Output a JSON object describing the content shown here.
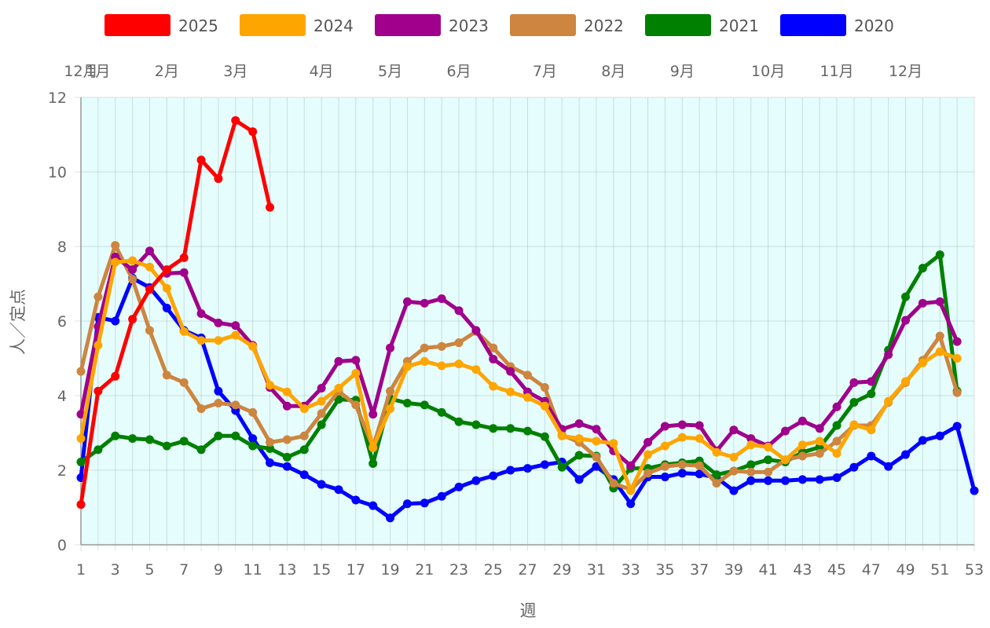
{
  "chart_data": {
    "type": "line",
    "xlabel": "週",
    "ylabel": "人／定点",
    "ylim": [
      0,
      12
    ],
    "xlim": [
      1,
      53
    ],
    "y_ticks": [
      0,
      2,
      4,
      6,
      8,
      10,
      12
    ],
    "x_ticks": [
      1,
      3,
      5,
      7,
      9,
      11,
      13,
      15,
      17,
      19,
      21,
      23,
      25,
      27,
      29,
      31,
      33,
      35,
      37,
      39,
      41,
      43,
      45,
      47,
      49,
      51,
      53
    ],
    "month_labels": [
      {
        "label": "12月",
        "week": 1
      },
      {
        "label": "1月",
        "week": 2
      },
      {
        "label": "2月",
        "week": 6
      },
      {
        "label": "3月",
        "week": 10
      },
      {
        "label": "4月",
        "week": 15
      },
      {
        "label": "5月",
        "week": 19
      },
      {
        "label": "6月",
        "week": 23
      },
      {
        "label": "7月",
        "week": 28
      },
      {
        "label": "8月",
        "week": 32
      },
      {
        "label": "9月",
        "week": 36
      },
      {
        "label": "10月",
        "week": 41
      },
      {
        "label": "11月",
        "week": 45
      },
      {
        "label": "12月",
        "week": 49
      }
    ],
    "grid": true,
    "legend_position": "top",
    "plot_background": "#e5fdfd",
    "series": [
      {
        "name": "2020",
        "color": "#0000ff",
        "values": [
          1.8,
          6.1,
          6.0,
          7.15,
          6.9,
          6.35,
          5.75,
          5.55,
          4.12,
          3.6,
          2.85,
          2.2,
          2.1,
          1.88,
          1.62,
          1.48,
          1.2,
          1.05,
          0.72,
          1.1,
          1.12,
          1.3,
          1.55,
          1.72,
          1.85,
          2.0,
          2.05,
          2.15,
          2.22,
          1.75,
          2.1,
          1.75,
          1.1,
          1.82,
          1.82,
          1.92,
          1.9,
          1.8,
          1.45,
          1.72,
          1.72,
          1.72,
          1.75,
          1.75,
          1.8,
          2.08,
          2.38,
          2.1,
          2.42,
          2.8,
          2.92,
          3.18,
          1.45
        ]
      },
      {
        "name": "2021",
        "color": "#008000",
        "values": [
          2.22,
          2.55,
          2.92,
          2.85,
          2.82,
          2.65,
          2.78,
          2.55,
          2.92,
          2.92,
          2.65,
          2.58,
          2.35,
          2.55,
          3.22,
          3.9,
          3.88,
          2.18,
          3.92,
          3.8,
          3.75,
          3.55,
          3.3,
          3.22,
          3.12,
          3.12,
          3.05,
          2.9,
          2.08,
          2.4,
          2.38,
          1.52,
          2.05,
          2.05,
          2.15,
          2.2,
          2.25,
          1.88,
          1.98,
          2.15,
          2.28,
          2.22,
          2.48,
          2.62,
          3.2,
          3.82,
          4.05,
          5.22,
          6.65,
          7.42,
          7.78,
          4.12
        ]
      },
      {
        "name": "2022",
        "color": "#cd853f",
        "values": [
          4.65,
          6.65,
          8.03,
          7.12,
          5.75,
          4.55,
          4.35,
          3.65,
          3.8,
          3.75,
          3.55,
          2.75,
          2.82,
          2.92,
          3.52,
          4.12,
          3.75,
          2.62,
          4.12,
          4.92,
          5.28,
          5.32,
          5.42,
          5.72,
          5.28,
          4.78,
          4.55,
          4.22,
          2.95,
          2.75,
          2.35,
          1.65,
          1.48,
          1.92,
          2.1,
          2.15,
          2.12,
          1.65,
          1.98,
          1.95,
          1.95,
          2.28,
          2.38,
          2.45,
          2.78,
          3.2,
          3.2,
          3.82,
          4.35,
          4.95,
          5.6,
          4.08
        ]
      },
      {
        "name": "2023",
        "color": "#a0008c",
        "values": [
          3.5,
          5.85,
          7.72,
          7.38,
          7.88,
          7.28,
          7.3,
          6.2,
          5.95,
          5.88,
          5.35,
          4.22,
          3.72,
          3.72,
          4.2,
          4.92,
          4.95,
          3.5,
          5.28,
          6.52,
          6.48,
          6.6,
          6.28,
          5.75,
          4.98,
          4.65,
          4.1,
          3.85,
          3.1,
          3.25,
          3.1,
          2.52,
          2.12,
          2.75,
          3.18,
          3.22,
          3.2,
          2.52,
          3.08,
          2.85,
          2.65,
          3.05,
          3.32,
          3.12,
          3.7,
          4.35,
          4.38,
          5.1,
          6.02,
          6.48,
          6.52,
          5.45
        ]
      },
      {
        "name": "2024",
        "color": "#ffa500",
        "values": [
          2.85,
          5.35,
          7.58,
          7.62,
          7.45,
          6.88,
          5.72,
          5.48,
          5.48,
          5.62,
          5.32,
          4.28,
          4.1,
          3.65,
          3.85,
          4.2,
          4.6,
          2.6,
          3.65,
          4.78,
          4.92,
          4.8,
          4.85,
          4.7,
          4.25,
          4.1,
          3.95,
          3.72,
          2.92,
          2.85,
          2.78,
          2.72,
          1.45,
          2.42,
          2.65,
          2.88,
          2.85,
          2.48,
          2.35,
          2.68,
          2.62,
          2.28,
          2.68,
          2.78,
          2.45,
          3.22,
          3.08,
          3.85,
          4.38,
          4.88,
          5.18,
          5.0
        ]
      },
      {
        "name": "2025",
        "color": "#ff0000",
        "values": [
          1.08,
          4.12,
          4.52,
          6.05,
          6.85,
          7.38,
          7.7,
          10.32,
          9.82,
          11.38,
          11.08,
          9.05
        ]
      }
    ]
  }
}
